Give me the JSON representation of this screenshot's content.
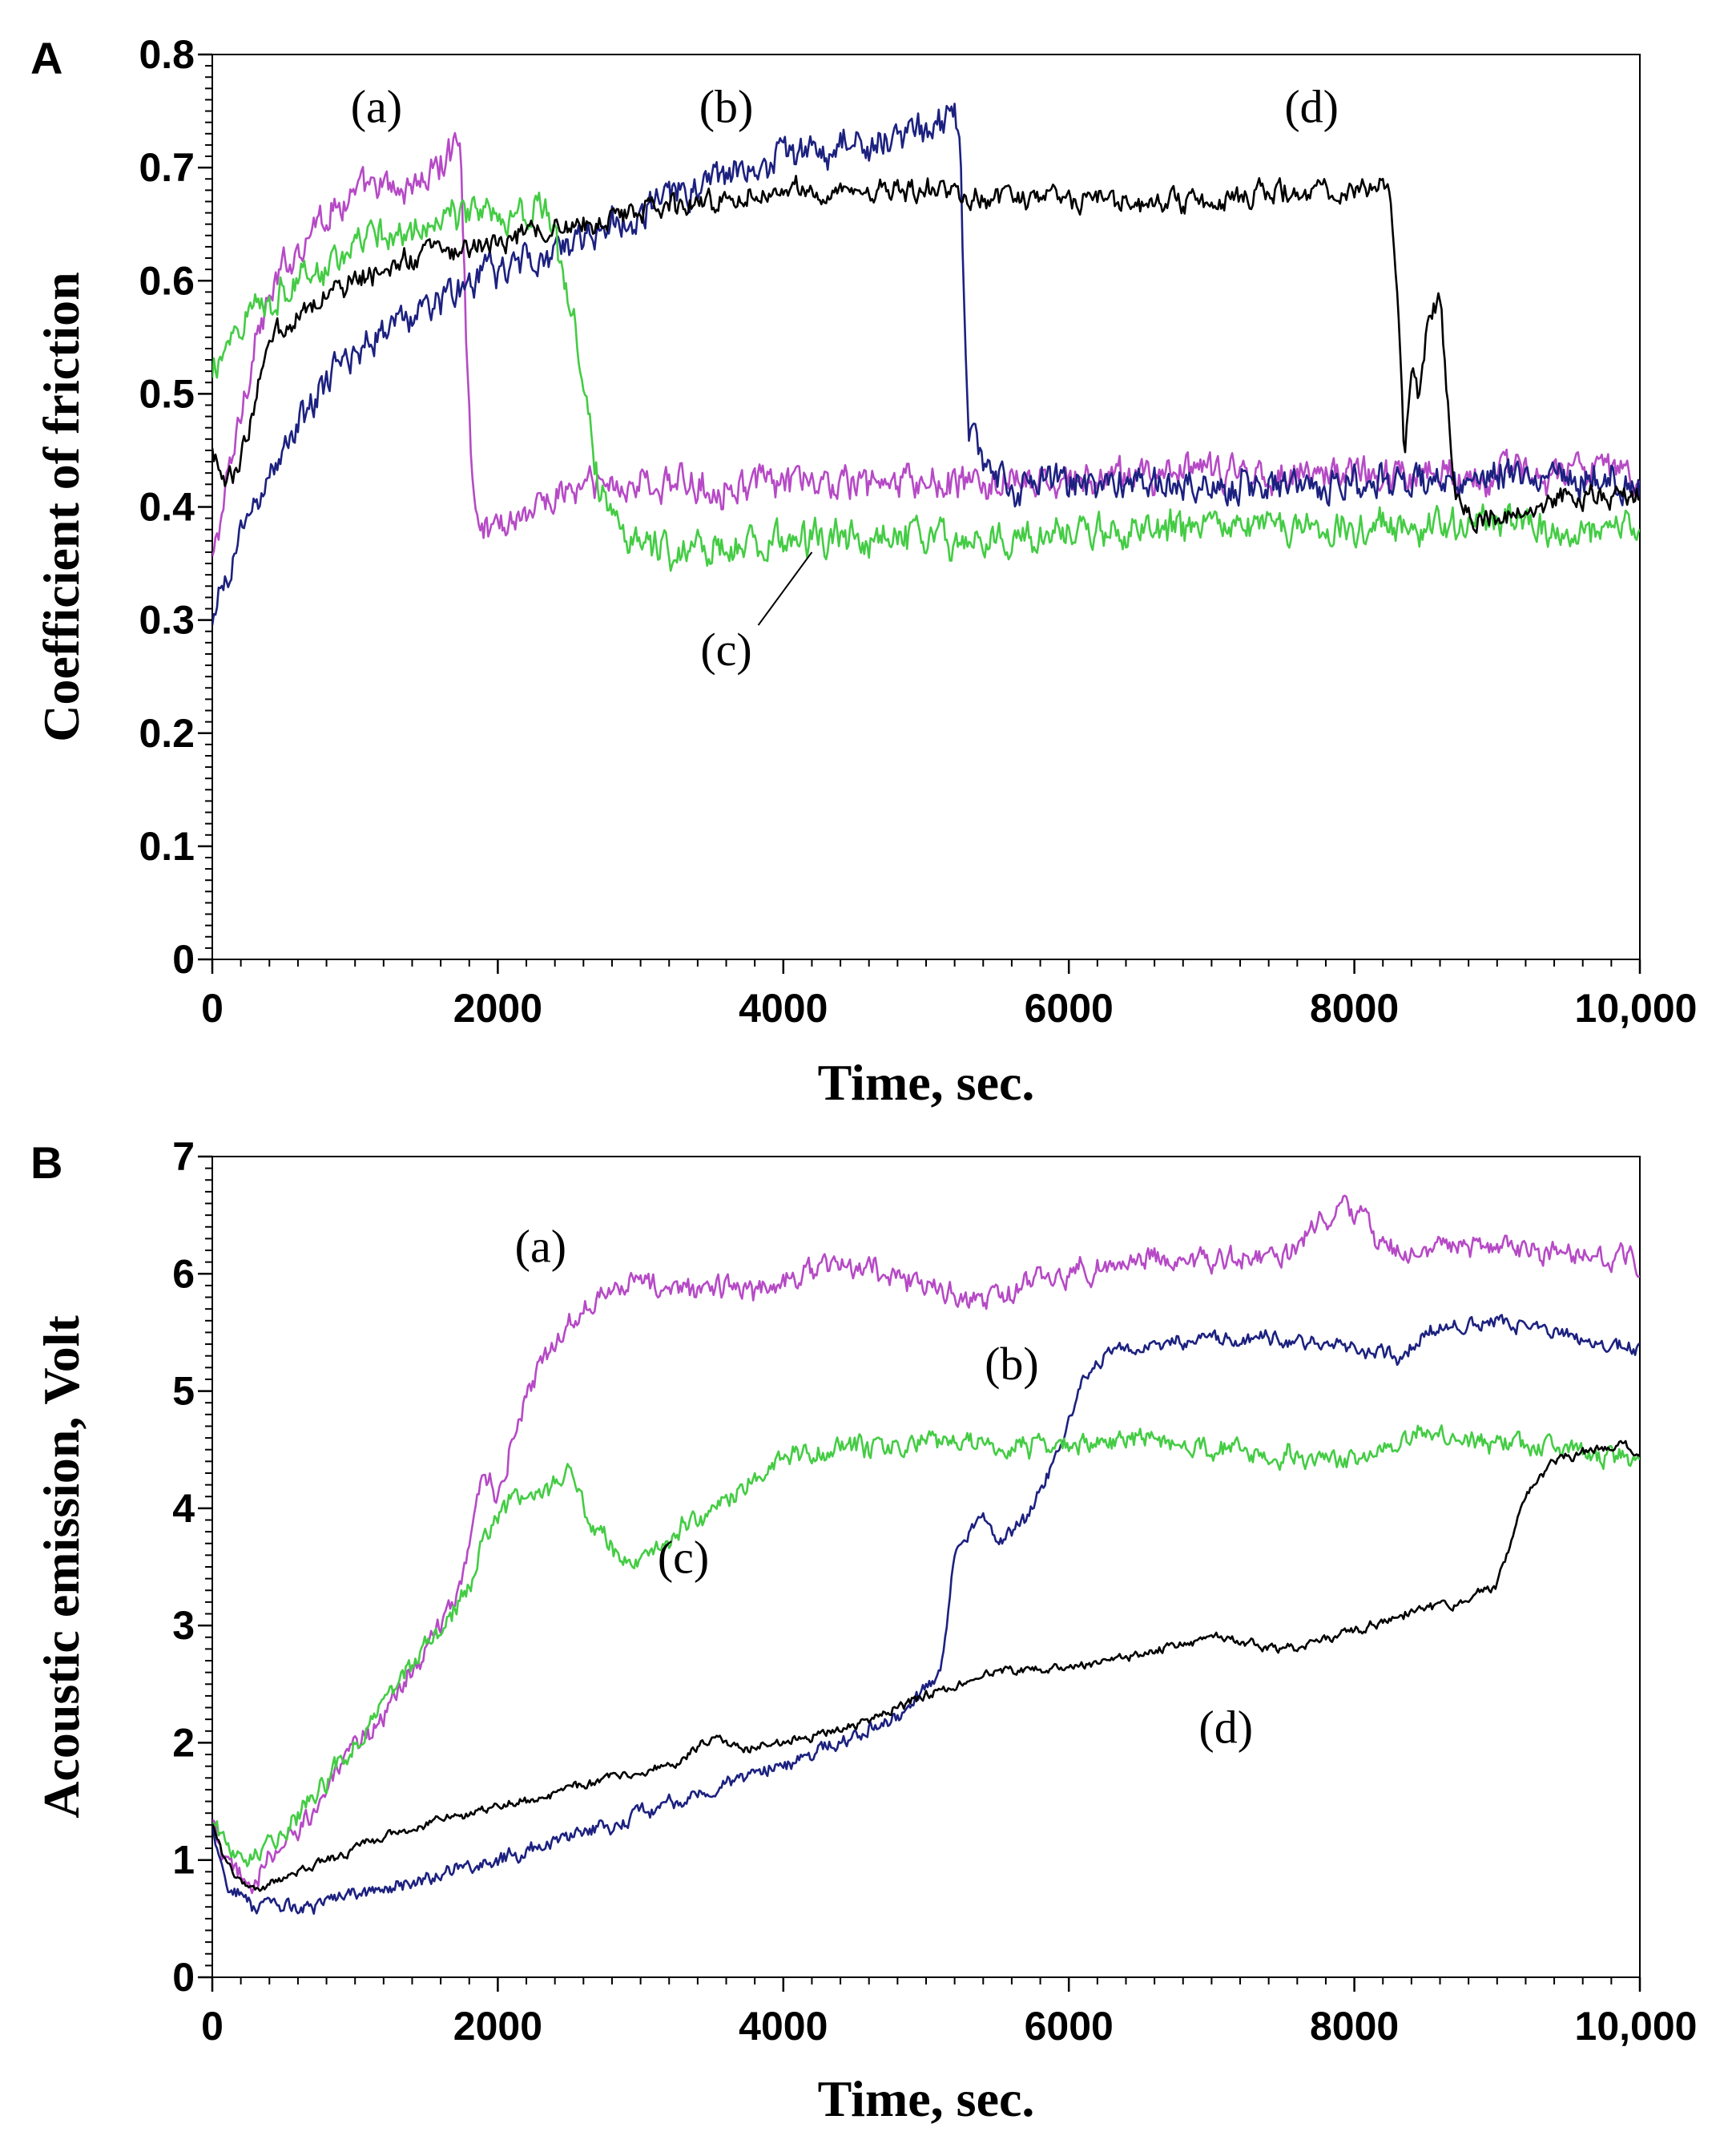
{
  "chart_data": [
    {
      "panel": "A",
      "type": "line",
      "xlabel": "Time, sec.",
      "ylabel": "Coefficient of friction",
      "xlim": [
        0,
        10000
      ],
      "ylim": [
        0,
        0.8
      ],
      "xticks": [
        0,
        2000,
        4000,
        6000,
        8000,
        10000
      ],
      "xtick_labels": [
        "0",
        "2000",
        "4000",
        "6000",
        "8000",
        "10,000"
      ],
      "yticks": [
        0,
        0.1,
        0.2,
        0.3,
        0.4,
        0.5,
        0.6,
        0.7,
        0.8
      ],
      "ytick_labels": [
        "0",
        "0.1",
        "0.2",
        "0.3",
        "0.4",
        "0.5",
        "0.6",
        "0.7",
        "0.8"
      ],
      "grid": false,
      "series": [
        {
          "name": "(a)",
          "color": "#b64ac6",
          "noise": 0.012,
          "x": [
            0,
            150,
            300,
            500,
            700,
            900,
            1100,
            1300,
            1500,
            1650,
            1740,
            1780,
            1820,
            1900,
            2100,
            2400,
            2700,
            3000,
            3500,
            4000,
            4500,
            5000,
            5500,
            6000,
            6500,
            7000,
            7500,
            8000,
            8500,
            9000,
            9500,
            10000
          ],
          "y": [
            0.35,
            0.45,
            0.55,
            0.61,
            0.65,
            0.67,
            0.68,
            0.68,
            0.69,
            0.71,
            0.73,
            0.55,
            0.42,
            0.38,
            0.39,
            0.41,
            0.42,
            0.42,
            0.42,
            0.42,
            0.42,
            0.42,
            0.42,
            0.42,
            0.43,
            0.43,
            0.43,
            0.43,
            0.43,
            0.43,
            0.43,
            0.43
          ],
          "label_pos": [
            1150,
            0.74
          ]
        },
        {
          "name": "(b)",
          "color": "#1c2180",
          "noise": 0.012,
          "x": [
            0,
            200,
            500,
            800,
            1100,
            1400,
            1700,
            2000,
            2300,
            2600,
            3000,
            3500,
            4000,
            4500,
            5000,
            5200,
            5240,
            5260,
            5300,
            5400,
            5600,
            6000,
            6500,
            7000,
            7500,
            8000,
            8500,
            9000,
            9500,
            10000
          ],
          "y": [
            0.29,
            0.38,
            0.45,
            0.51,
            0.55,
            0.57,
            0.59,
            0.61,
            0.62,
            0.64,
            0.66,
            0.69,
            0.71,
            0.72,
            0.73,
            0.75,
            0.72,
            0.6,
            0.46,
            0.44,
            0.42,
            0.42,
            0.42,
            0.42,
            0.42,
            0.42,
            0.42,
            0.43,
            0.43,
            0.42
          ],
          "label_pos": [
            3600,
            0.74
          ]
        },
        {
          "name": "(c)",
          "color": "#44cc44",
          "noise": 0.012,
          "x": [
            0,
            100,
            300,
            600,
            900,
            1200,
            1500,
            1800,
            2100,
            2300,
            2400,
            2450,
            2550,
            2600,
            2700,
            2800,
            3000,
            3300,
            3600,
            4000,
            4500,
            5000,
            5500,
            6000,
            6500,
            7000,
            7500,
            8000,
            8500,
            9000,
            9500,
            10000
          ],
          "y": [
            0.51,
            0.55,
            0.58,
            0.6,
            0.62,
            0.64,
            0.65,
            0.66,
            0.66,
            0.67,
            0.64,
            0.6,
            0.56,
            0.5,
            0.43,
            0.39,
            0.37,
            0.36,
            0.36,
            0.37,
            0.37,
            0.37,
            0.37,
            0.38,
            0.38,
            0.38,
            0.38,
            0.38,
            0.38,
            0.39,
            0.38,
            0.38
          ],
          "label_pos": [
            3600,
            0.26
          ],
          "leader": [
            4200,
            0.36
          ]
        },
        {
          "name": "(d)",
          "color": "#000000",
          "noise": 0.008,
          "x": [
            0,
            50,
            100,
            200,
            400,
            700,
            1000,
            1400,
            1800,
            2200,
            2600,
            3000,
            3500,
            4000,
            4500,
            5000,
            5500,
            6000,
            6500,
            7000,
            7500,
            8000,
            8250,
            8300,
            8330,
            8350,
            8400,
            8450,
            8500,
            8550,
            8600,
            8650,
            8700,
            8800,
            9000,
            9500,
            10000
          ],
          "y": [
            0.45,
            0.43,
            0.42,
            0.44,
            0.55,
            0.58,
            0.6,
            0.62,
            0.63,
            0.64,
            0.65,
            0.66,
            0.67,
            0.68,
            0.68,
            0.68,
            0.67,
            0.67,
            0.67,
            0.67,
            0.68,
            0.68,
            0.68,
            0.6,
            0.5,
            0.44,
            0.53,
            0.5,
            0.55,
            0.57,
            0.58,
            0.5,
            0.42,
            0.39,
            0.39,
            0.41,
            0.41
          ],
          "label_pos": [
            7700,
            0.74
          ]
        }
      ]
    },
    {
      "panel": "B",
      "type": "line",
      "xlabel": "Time, sec.",
      "ylabel": "Acoustic emission, Volt",
      "xlim": [
        0,
        10000
      ],
      "ylim": [
        0,
        7
      ],
      "xticks": [
        0,
        2000,
        4000,
        6000,
        8000,
        10000
      ],
      "xtick_labels": [
        "0",
        "2000",
        "4000",
        "6000",
        "8000",
        "10,000"
      ],
      "yticks": [
        0,
        1,
        2,
        3,
        4,
        5,
        6,
        7
      ],
      "ytick_labels": [
        "0",
        "1",
        "2",
        "3",
        "4",
        "5",
        "6",
        "7"
      ],
      "grid": false,
      "series": [
        {
          "name": "(a)",
          "color": "#b64ac6",
          "noise": 0.08,
          "x": [
            0,
            100,
            250,
            500,
            800,
            1100,
            1400,
            1700,
            1900,
            2000,
            2100,
            2300,
            2500,
            2700,
            2900,
            3200,
            3500,
            3800,
            4200,
            4600,
            5000,
            5400,
            5800,
            6200,
            6600,
            7000,
            7500,
            7900,
            8300,
            8700,
            9200,
            10000
          ],
          "y": [
            1.3,
            0.95,
            0.78,
            1.1,
            1.6,
            2.1,
            2.6,
            3.2,
            4.3,
            4.1,
            4.6,
            5.2,
            5.6,
            5.85,
            5.95,
            5.85,
            5.9,
            5.85,
            6.05,
            6.05,
            5.9,
            5.75,
            5.95,
            6.05,
            6.15,
            6.1,
            6.15,
            6.55,
            6.2,
            6.25,
            6.2,
            6.1
          ],
          "label_pos": [
            2300,
            6.1
          ]
        },
        {
          "name": "(b)",
          "color": "#1c2180",
          "noise": 0.05,
          "x": [
            0,
            100,
            300,
            600,
            1000,
            1500,
            2000,
            2500,
            3000,
            3500,
            4000,
            4500,
            4900,
            5100,
            5200,
            5400,
            5500,
            5700,
            5900,
            6100,
            6300,
            6600,
            7000,
            7500,
            8000,
            8300,
            8600,
            9000,
            9500,
            10000
          ],
          "y": [
            1.3,
            0.8,
            0.6,
            0.6,
            0.7,
            0.85,
            1.0,
            1.2,
            1.4,
            1.6,
            1.8,
            2.05,
            2.3,
            2.6,
            3.6,
            4.0,
            3.7,
            3.9,
            4.4,
            5.1,
            5.35,
            5.4,
            5.45,
            5.45,
            5.35,
            5.3,
            5.55,
            5.6,
            5.5,
            5.35
          ],
          "label_pos": [
            5600,
            5.1
          ]
        },
        {
          "name": "(c)",
          "color": "#44cc44",
          "noise": 0.07,
          "x": [
            0,
            100,
            200,
            400,
            700,
            1000,
            1300,
            1600,
            1800,
            1900,
            2100,
            2300,
            2500,
            2700,
            2900,
            3100,
            3500,
            4000,
            4500,
            5000,
            5500,
            6000,
            6500,
            7000,
            7500,
            8000,
            8500,
            9000,
            9500,
            10000
          ],
          "y": [
            1.3,
            1.15,
            1.05,
            1.15,
            1.5,
            2.0,
            2.5,
            2.95,
            3.3,
            3.8,
            4.05,
            4.1,
            4.3,
            3.8,
            3.55,
            3.65,
            4.0,
            4.45,
            4.5,
            4.55,
            4.5,
            4.55,
            4.6,
            4.5,
            4.45,
            4.4,
            4.65,
            4.55,
            4.5,
            4.4
          ],
          "label_pos": [
            3300,
            3.45
          ]
        },
        {
          "name": "(d)",
          "color": "#000000",
          "noise": 0.03,
          "x": [
            0,
            100,
            200,
            300,
            500,
            800,
            1200,
            1600,
            2000,
            2500,
            3000,
            3300,
            3500,
            3700,
            4000,
            4500,
            5000,
            5500,
            6000,
            6500,
            7000,
            7500,
            8000,
            8500,
            8800,
            9000,
            9200,
            9400,
            9700,
            9900,
            10000
          ],
          "y": [
            1.3,
            0.95,
            0.8,
            0.72,
            0.85,
            1.0,
            1.2,
            1.35,
            1.45,
            1.6,
            1.75,
            1.85,
            2.05,
            1.95,
            2.0,
            2.15,
            2.4,
            2.6,
            2.65,
            2.75,
            2.9,
            2.8,
            2.95,
            3.15,
            3.2,
            3.35,
            4.1,
            4.4,
            4.5,
            4.55,
            4.45
          ],
          "label_pos": [
            7100,
            2.0
          ]
        }
      ]
    }
  ]
}
